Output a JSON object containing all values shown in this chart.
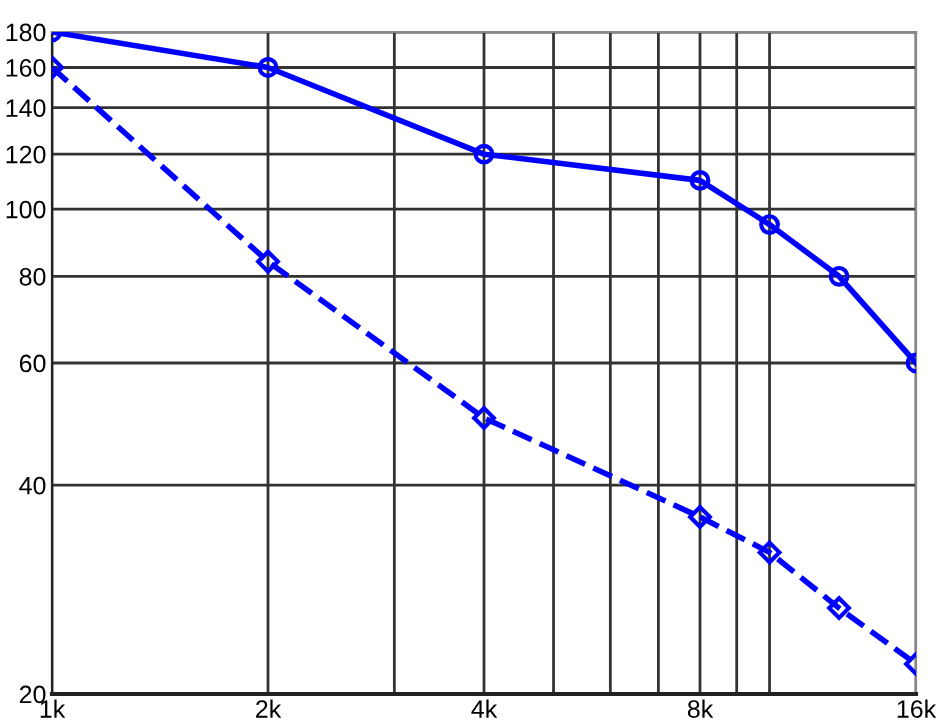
{
  "chart_data": {
    "type": "line",
    "log": "xy",
    "grid": true,
    "legend": false,
    "x": [
      1000,
      2000,
      4000,
      8000,
      10000,
      12500,
      16000
    ],
    "series": [
      {
        "color": "#0000ff",
        "marker": "circle",
        "line_style": "solid",
        "values": [
          180,
          160,
          120,
          110,
          95,
          80,
          60
        ]
      },
      {
        "color": "#0000ff",
        "marker": "diamond",
        "line_style": "dashed",
        "values": [
          160,
          84,
          50,
          36,
          32,
          26.6,
          22.1
        ]
      }
    ],
    "xlim": [
      1000,
      16000
    ],
    "ylim": [
      20,
      180
    ],
    "xticks": [
      {
        "value": 1000,
        "label": "1k"
      },
      {
        "value": 2000,
        "label": "2k"
      },
      {
        "value": 3000,
        "label": null
      },
      {
        "value": 4000,
        "label": "4k"
      },
      {
        "value": 5000,
        "label": null
      },
      {
        "value": 6000,
        "label": null
      },
      {
        "value": 7000,
        "label": null
      },
      {
        "value": 8000,
        "label": "8k"
      },
      {
        "value": 9000,
        "label": null
      },
      {
        "value": 10000,
        "label": null
      },
      {
        "value": 16000,
        "label": "16k"
      }
    ],
    "yticks": [
      20,
      40,
      60,
      80,
      100,
      120,
      140,
      160,
      180
    ]
  }
}
